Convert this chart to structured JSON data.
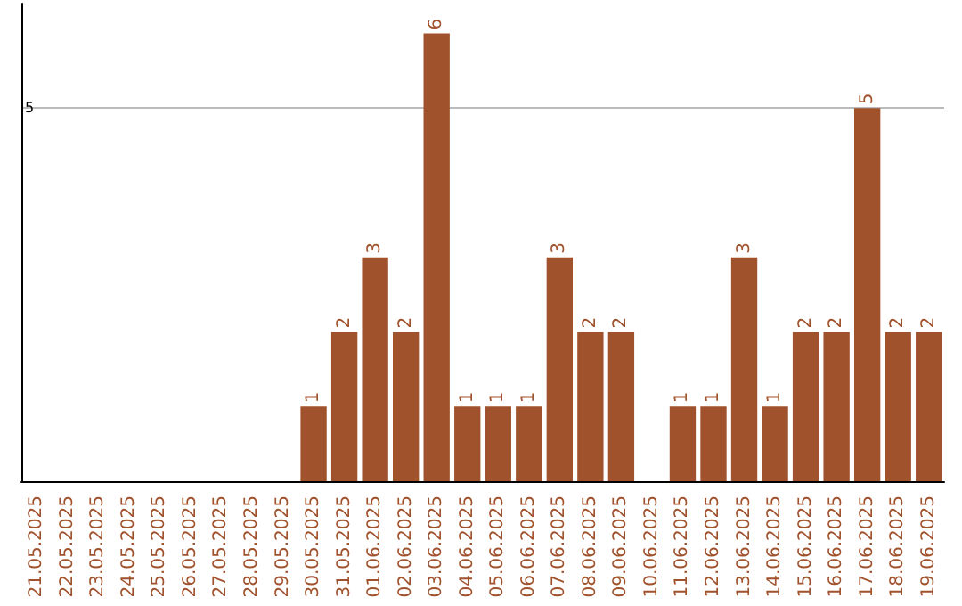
{
  "chart_data": {
    "type": "bar",
    "categories": [
      "21.05.2025",
      "22.05.2025",
      "23.05.2025",
      "24.05.2025",
      "25.05.2025",
      "26.05.2025",
      "27.05.2025",
      "28.05.2025",
      "29.05.2025",
      "30.05.2025",
      "31.05.2025",
      "01.06.2025",
      "02.06.2025",
      "03.06.2025",
      "04.06.2025",
      "05.06.2025",
      "06.06.2025",
      "07.06.2025",
      "08.06.2025",
      "09.06.2025",
      "10.06.2025",
      "11.06.2025",
      "12.06.2025",
      "13.06.2025",
      "14.06.2025",
      "15.06.2025",
      "16.06.2025",
      "17.06.2025",
      "18.06.2025",
      "19.06.2025"
    ],
    "values": [
      0,
      0,
      0,
      0,
      0,
      0,
      0,
      0,
      0,
      1,
      2,
      3,
      2,
      6,
      1,
      1,
      1,
      3,
      2,
      2,
      0,
      1,
      1,
      3,
      1,
      2,
      2,
      5,
      2,
      2
    ],
    "value_labels": [
      null,
      null,
      null,
      null,
      null,
      null,
      null,
      null,
      null,
      "1",
      "2",
      "3",
      "2",
      "6",
      "1",
      "1",
      "1",
      "3",
      "2",
      "2",
      null,
      "1",
      "1",
      "3",
      "1",
      "2",
      "2",
      "5",
      "2",
      "2"
    ],
    "color": "#a0522d",
    "ylim": [
      0,
      6.4
    ],
    "yticks": [
      5
    ],
    "grid": "y"
  }
}
